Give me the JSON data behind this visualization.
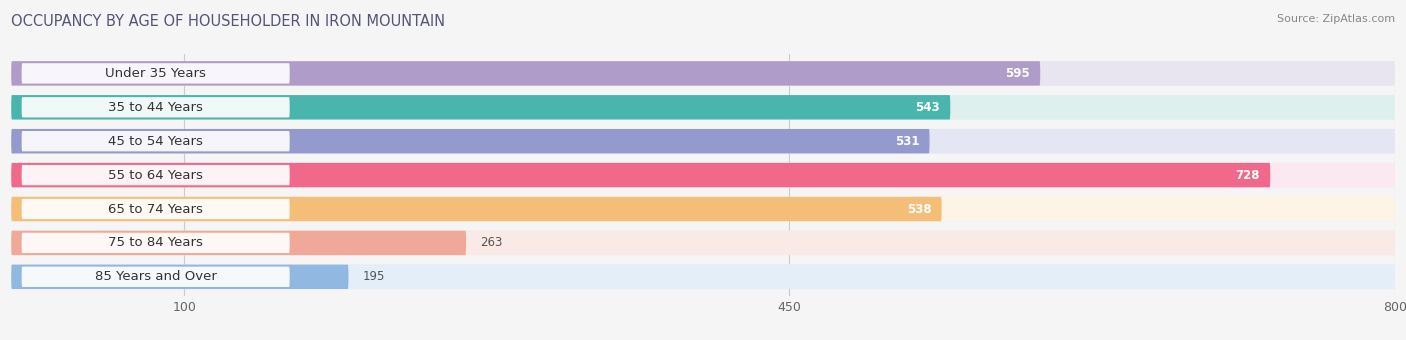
{
  "title": "OCCUPANCY BY AGE OF HOUSEHOLDER IN IRON MOUNTAIN",
  "source": "Source: ZipAtlas.com",
  "categories": [
    "Under 35 Years",
    "35 to 44 Years",
    "45 to 54 Years",
    "55 to 64 Years",
    "65 to 74 Years",
    "75 to 84 Years",
    "85 Years and Over"
  ],
  "values": [
    595,
    543,
    531,
    728,
    538,
    263,
    195
  ],
  "bar_colors": [
    "#b09cc8",
    "#4ab5ac",
    "#9499ce",
    "#f0688a",
    "#f5be78",
    "#f0a898",
    "#90b8e0"
  ],
  "bar_bg_colors": [
    "#e8e4f0",
    "#ddf0ee",
    "#e4e6f4",
    "#fce8f0",
    "#fdf4e4",
    "#faeae6",
    "#e4eef8"
  ],
  "xlim_min": 0,
  "xlim_max": 800,
  "xticks": [
    100,
    450,
    800
  ],
  "background_color": "#f5f5f5",
  "bar_row_bg": "#ffffff",
  "title_fontsize": 10.5,
  "label_fontsize": 9.5,
  "value_fontsize": 8.5,
  "value_threshold": 300
}
